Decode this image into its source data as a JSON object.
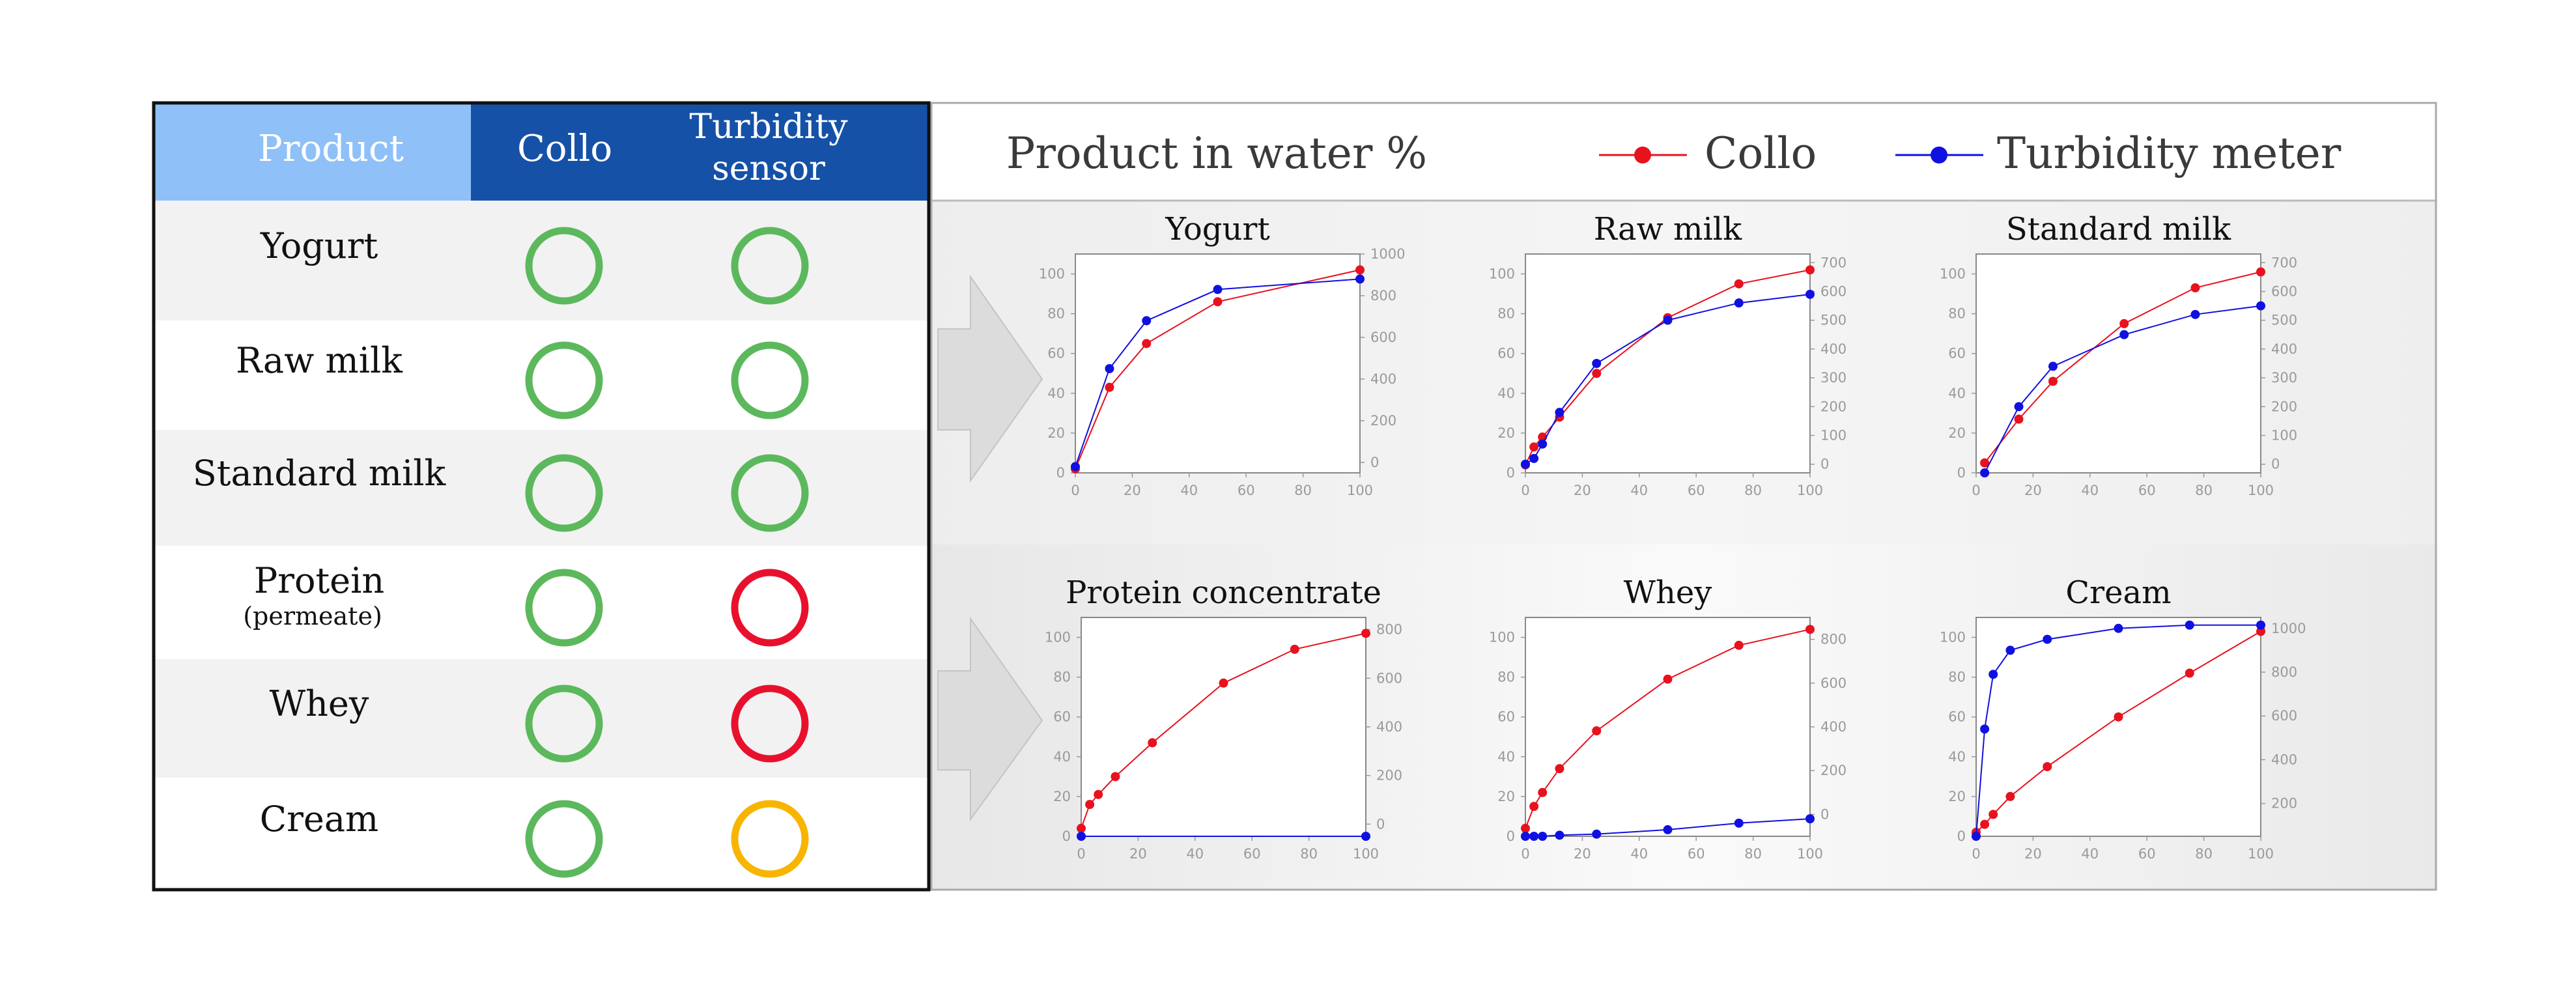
{
  "table": {
    "headers": [
      "Product",
      "Collo",
      "Turbidity sensor"
    ],
    "header_lines": {
      "product": "Product",
      "collo": "Collo",
      "turbidity_1": "Turbidity",
      "turbidity_2": "sensor"
    },
    "rows": [
      {
        "product": "Yogurt",
        "sub": "",
        "collo": "ok",
        "turbidity": "ok"
      },
      {
        "product": "Raw milk",
        "sub": "",
        "collo": "ok",
        "turbidity": "ok"
      },
      {
        "product": "Standard milk",
        "sub": "",
        "collo": "ok",
        "turbidity": "ok"
      },
      {
        "product": "Protein",
        "sub": "(permeate)",
        "collo": "ok",
        "turbidity": "fail"
      },
      {
        "product": "Whey",
        "sub": "",
        "collo": "ok",
        "turbidity": "fail"
      },
      {
        "product": "Cream",
        "sub": "",
        "collo": "ok",
        "turbidity": "partial"
      }
    ],
    "status_colors": {
      "ok": "#5cb85c",
      "fail": "#e8112d",
      "partial": "#f7b500"
    },
    "colors": {
      "header_light": "#8fc0f7",
      "header_dark": "#1651a8",
      "row_shade": "#f2f2f2"
    }
  },
  "panel_header": {
    "title": "Product in water %",
    "legend": [
      {
        "name": "Collo",
        "color": "#e8111e"
      },
      {
        "name": "Turbidity meter",
        "color": "#1010e0"
      }
    ]
  },
  "chart_data": [
    {
      "type": "line",
      "title": "Yogurt",
      "xlim": [
        0,
        100
      ],
      "ylim": [
        0,
        110
      ],
      "y2lim": [
        -50,
        1000
      ],
      "xticks": [
        0,
        20,
        40,
        60,
        80,
        100
      ],
      "yticks": [
        0,
        20,
        40,
        60,
        80,
        100
      ],
      "y2ticks": [
        0,
        200,
        400,
        600,
        800,
        1000
      ],
      "series": [
        {
          "name": "Collo",
          "axis": "left",
          "x": [
            0,
            12,
            25,
            50,
            100
          ],
          "y": [
            2,
            43,
            65,
            86,
            102
          ]
        },
        {
          "name": "Turbidity meter",
          "axis": "right",
          "x": [
            0,
            12,
            25,
            50,
            100
          ],
          "y": [
            -20,
            450,
            680,
            830,
            880
          ]
        }
      ]
    },
    {
      "type": "line",
      "title": "Raw milk",
      "xlim": [
        0,
        100
      ],
      "ylim": [
        0,
        110
      ],
      "y2lim": [
        -30,
        730
      ],
      "xticks": [
        0,
        20,
        40,
        60,
        80,
        100
      ],
      "yticks": [
        0,
        20,
        40,
        60,
        80,
        100
      ],
      "y2ticks": [
        0,
        100,
        200,
        300,
        400,
        500,
        600,
        700
      ],
      "series": [
        {
          "name": "Collo",
          "axis": "left",
          "x": [
            0,
            3,
            6,
            12,
            25,
            50,
            75,
            100
          ],
          "y": [
            4,
            13,
            18,
            28,
            50,
            78,
            95,
            102
          ]
        },
        {
          "name": "Turbidity meter",
          "axis": "right",
          "x": [
            0,
            3,
            6,
            12,
            25,
            50,
            75,
            100
          ],
          "y": [
            0,
            20,
            70,
            180,
            350,
            500,
            560,
            590
          ]
        }
      ]
    },
    {
      "type": "line",
      "title": "Standard milk",
      "xlim": [
        0,
        100
      ],
      "ylim": [
        0,
        110
      ],
      "y2lim": [
        -30,
        730
      ],
      "xticks": [
        0,
        20,
        40,
        60,
        80,
        100
      ],
      "yticks": [
        0,
        20,
        40,
        60,
        80,
        100
      ],
      "y2ticks": [
        0,
        100,
        200,
        300,
        400,
        500,
        600,
        700
      ],
      "series": [
        {
          "name": "Collo",
          "axis": "left",
          "x": [
            3,
            15,
            27,
            52,
            77,
            100
          ],
          "y": [
            5,
            27,
            46,
            75,
            93,
            101
          ]
        },
        {
          "name": "Turbidity meter",
          "axis": "right",
          "x": [
            3,
            15,
            27,
            52,
            77,
            100
          ],
          "y": [
            -30,
            200,
            340,
            450,
            520,
            550
          ]
        }
      ]
    },
    {
      "type": "line",
      "title": "Protein concentrate",
      "xlim": [
        0,
        100
      ],
      "ylim": [
        0,
        110
      ],
      "y2lim": [
        -50,
        850
      ],
      "xticks": [
        0,
        20,
        40,
        60,
        80,
        100
      ],
      "yticks": [
        0,
        20,
        40,
        60,
        80,
        100
      ],
      "y2ticks": [
        0,
        200,
        400,
        600,
        800
      ],
      "series": [
        {
          "name": "Collo",
          "axis": "left",
          "x": [
            0,
            3,
            6,
            12,
            25,
            50,
            75,
            100
          ],
          "y": [
            4,
            16,
            21,
            30,
            47,
            77,
            94,
            102
          ]
        },
        {
          "name": "Turbidity meter",
          "axis": "right",
          "x": [
            0,
            100
          ],
          "y": [
            -50,
            -50
          ]
        }
      ]
    },
    {
      "type": "line",
      "title": "Whey",
      "xlim": [
        0,
        100
      ],
      "ylim": [
        0,
        110
      ],
      "y2lim": [
        -100,
        900
      ],
      "xticks": [
        0,
        20,
        40,
        60,
        80,
        100
      ],
      "yticks": [
        0,
        20,
        40,
        60,
        80,
        100
      ],
      "y2ticks": [
        0,
        200,
        400,
        600,
        800
      ],
      "series": [
        {
          "name": "Collo",
          "axis": "left",
          "x": [
            0,
            3,
            6,
            12,
            25,
            50,
            75,
            100
          ],
          "y": [
            4,
            15,
            22,
            34,
            53,
            79,
            96,
            104
          ]
        },
        {
          "name": "Turbidity meter",
          "axis": "right",
          "x": [
            0,
            3,
            6,
            12,
            25,
            50,
            75,
            100
          ],
          "y": [
            -100,
            -100,
            -100,
            -95,
            -90,
            -70,
            -40,
            -20
          ]
        }
      ]
    },
    {
      "type": "line",
      "title": "Cream",
      "xlim": [
        0,
        100
      ],
      "ylim": [
        0,
        110
      ],
      "y2lim": [
        50,
        1050
      ],
      "xticks": [
        0,
        20,
        40,
        60,
        80,
        100
      ],
      "yticks": [
        0,
        20,
        40,
        60,
        80,
        100
      ],
      "y2ticks": [
        200,
        400,
        600,
        800,
        1000
      ],
      "series": [
        {
          "name": "Collo",
          "axis": "left",
          "x": [
            0,
            3,
            6,
            12,
            25,
            50,
            75,
            100
          ],
          "y": [
            2,
            6,
            11,
            20,
            35,
            60,
            82,
            103
          ]
        },
        {
          "name": "Turbidity meter",
          "axis": "right",
          "x": [
            0,
            3,
            6,
            12,
            25,
            50,
            75,
            100
          ],
          "y": [
            50,
            540,
            790,
            900,
            950,
            1000,
            1015,
            1015
          ]
        }
      ]
    }
  ]
}
